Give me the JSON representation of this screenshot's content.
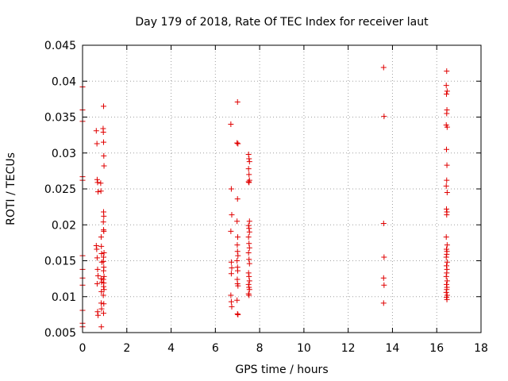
{
  "chart_data": {
    "type": "scatter",
    "title": "Day 179 of 2018, Rate Of TEC Index for receiver laut",
    "xlabel": "GPS time / hours",
    "ylabel": "ROTI / TECUs",
    "xlim": [
      0,
      18
    ],
    "ylim": [
      0.005,
      0.045
    ],
    "xticks": [
      0,
      2,
      4,
      6,
      8,
      10,
      12,
      14,
      16,
      18
    ],
    "xtick_labels": [
      "0",
      "2",
      "4",
      "6",
      "8",
      "10",
      "12",
      "14",
      "16",
      "18"
    ],
    "yticks": [
      0.005,
      0.01,
      0.015,
      0.02,
      0.025,
      0.03,
      0.035,
      0.04,
      0.045
    ],
    "ytick_labels": [
      "0.005",
      "0.01",
      "0.015",
      "0.02",
      "0.025",
      "0.03",
      "0.035",
      "0.04",
      "0.045"
    ],
    "grid": true,
    "marker": "+",
    "color": "#e00000",
    "series": [
      {
        "name": "ROTI",
        "points": [
          [
            0.0,
            0.0392
          ],
          [
            0.0,
            0.036
          ],
          [
            0.0,
            0.0344
          ],
          [
            0.0,
            0.0267
          ],
          [
            0.0,
            0.0262
          ],
          [
            0.0,
            0.0157
          ],
          [
            0.0,
            0.0138
          ],
          [
            0.0,
            0.0126
          ],
          [
            0.0,
            0.0116
          ],
          [
            0.0,
            0.0081
          ],
          [
            0.0,
            0.0063
          ],
          [
            0.0,
            0.0058
          ],
          [
            0.62,
            0.0331
          ],
          [
            0.65,
            0.0313
          ],
          [
            0.66,
            0.0263
          ],
          [
            0.68,
            0.0259
          ],
          [
            0.7,
            0.0246
          ],
          [
            0.62,
            0.0171
          ],
          [
            0.64,
            0.0166
          ],
          [
            0.66,
            0.0154
          ],
          [
            0.68,
            0.0138
          ],
          [
            0.7,
            0.0129
          ],
          [
            0.66,
            0.0118
          ],
          [
            0.68,
            0.0079
          ],
          [
            0.7,
            0.0074
          ],
          [
            0.82,
            0.0258
          ],
          [
            0.83,
            0.0247
          ],
          [
            0.84,
            0.0183
          ],
          [
            0.85,
            0.017
          ],
          [
            0.86,
            0.016
          ],
          [
            0.87,
            0.0148
          ],
          [
            0.84,
            0.0125
          ],
          [
            0.86,
            0.012
          ],
          [
            0.85,
            0.0107
          ],
          [
            0.84,
            0.0091
          ],
          [
            0.86,
            0.0083
          ],
          [
            0.85,
            0.0058
          ],
          [
            0.95,
            0.0365
          ],
          [
            0.93,
            0.0334
          ],
          [
            0.94,
            0.0329
          ],
          [
            0.95,
            0.0315
          ],
          [
            0.96,
            0.0296
          ],
          [
            0.97,
            0.0282
          ],
          [
            0.95,
            0.0218
          ],
          [
            0.96,
            0.0212
          ],
          [
            0.94,
            0.0204
          ],
          [
            0.95,
            0.0193
          ],
          [
            0.96,
            0.0191
          ],
          [
            0.97,
            0.0161
          ],
          [
            0.95,
            0.0155
          ],
          [
            0.94,
            0.0149
          ],
          [
            0.96,
            0.0141
          ],
          [
            0.95,
            0.0136
          ],
          [
            0.97,
            0.0128
          ],
          [
            0.94,
            0.0124
          ],
          [
            0.96,
            0.0119
          ],
          [
            0.95,
            0.0114
          ],
          [
            0.97,
            0.011
          ],
          [
            0.94,
            0.0102
          ],
          [
            0.96,
            0.009
          ],
          [
            0.95,
            0.0077
          ],
          [
            6.7,
            0.034
          ],
          [
            6.72,
            0.025
          ],
          [
            6.74,
            0.0214
          ],
          [
            6.7,
            0.0191
          ],
          [
            6.72,
            0.0148
          ],
          [
            6.74,
            0.014
          ],
          [
            6.72,
            0.0132
          ],
          [
            6.7,
            0.0102
          ],
          [
            6.72,
            0.0093
          ],
          [
            6.74,
            0.0086
          ],
          [
            7.0,
            0.0371
          ],
          [
            6.98,
            0.0314
          ],
          [
            7.02,
            0.0313
          ],
          [
            7.0,
            0.0236
          ],
          [
            6.98,
            0.0205
          ],
          [
            7.01,
            0.0183
          ],
          [
            6.99,
            0.0172
          ],
          [
            7.0,
            0.0163
          ],
          [
            7.02,
            0.0157
          ],
          [
            6.98,
            0.015
          ],
          [
            7.0,
            0.0141
          ],
          [
            7.01,
            0.0136
          ],
          [
            6.99,
            0.0124
          ],
          [
            7.0,
            0.0118
          ],
          [
            7.02,
            0.0115
          ],
          [
            6.98,
            0.0095
          ],
          [
            7.0,
            0.0076
          ],
          [
            7.02,
            0.0075
          ],
          [
            7.5,
            0.0298
          ],
          [
            7.52,
            0.0292
          ],
          [
            7.54,
            0.0288
          ],
          [
            7.5,
            0.0278
          ],
          [
            7.52,
            0.027
          ],
          [
            7.54,
            0.0262
          ],
          [
            7.5,
            0.026
          ],
          [
            7.52,
            0.0259
          ],
          [
            7.54,
            0.0205
          ],
          [
            7.5,
            0.0199
          ],
          [
            7.52,
            0.0195
          ],
          [
            7.54,
            0.019
          ],
          [
            7.5,
            0.0183
          ],
          [
            7.52,
            0.0174
          ],
          [
            7.54,
            0.0168
          ],
          [
            7.5,
            0.0161
          ],
          [
            7.52,
            0.0152
          ],
          [
            7.54,
            0.0146
          ],
          [
            7.5,
            0.0133
          ],
          [
            7.52,
            0.0128
          ],
          [
            7.54,
            0.0122
          ],
          [
            7.5,
            0.0117
          ],
          [
            7.52,
            0.0113
          ],
          [
            7.54,
            0.011
          ],
          [
            7.5,
            0.0104
          ],
          [
            7.52,
            0.0102
          ],
          [
            13.6,
            0.0419
          ],
          [
            13.62,
            0.0351
          ],
          [
            13.6,
            0.0202
          ],
          [
            13.62,
            0.0155
          ],
          [
            13.6,
            0.0126
          ],
          [
            13.62,
            0.0116
          ],
          [
            13.6,
            0.0091
          ],
          [
            16.45,
            0.0414
          ],
          [
            16.43,
            0.0394
          ],
          [
            16.47,
            0.0386
          ],
          [
            16.44,
            0.0382
          ],
          [
            16.46,
            0.036
          ],
          [
            16.45,
            0.0355
          ],
          [
            16.43,
            0.0339
          ],
          [
            16.47,
            0.0336
          ],
          [
            16.44,
            0.0305
          ],
          [
            16.46,
            0.0283
          ],
          [
            16.45,
            0.0262
          ],
          [
            16.43,
            0.0254
          ],
          [
            16.47,
            0.0245
          ],
          [
            16.44,
            0.0222
          ],
          [
            16.46,
            0.0218
          ],
          [
            16.45,
            0.0214
          ],
          [
            16.43,
            0.0183
          ],
          [
            16.47,
            0.0172
          ],
          [
            16.44,
            0.0166
          ],
          [
            16.46,
            0.0163
          ],
          [
            16.45,
            0.0159
          ],
          [
            16.43,
            0.0155
          ],
          [
            16.47,
            0.0148
          ],
          [
            16.44,
            0.0143
          ],
          [
            16.46,
            0.0138
          ],
          [
            16.45,
            0.0133
          ],
          [
            16.43,
            0.0128
          ],
          [
            16.47,
            0.0122
          ],
          [
            16.44,
            0.0117
          ],
          [
            16.46,
            0.0113
          ],
          [
            16.45,
            0.011
          ],
          [
            16.43,
            0.0106
          ],
          [
            16.47,
            0.0102
          ],
          [
            16.44,
            0.0099
          ],
          [
            16.46,
            0.0096
          ]
        ]
      }
    ]
  }
}
